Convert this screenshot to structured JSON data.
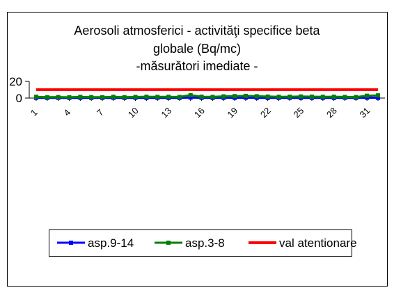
{
  "chart_data": {
    "type": "line",
    "title_lines": [
      "Aerosoli atmosferici  - activităţi specifice beta",
      "globale (Bq/mc)",
      "-măsurători imediate -"
    ],
    "xlabel": "",
    "ylabel": "",
    "x": [
      1,
      2,
      3,
      4,
      5,
      6,
      7,
      8,
      9,
      10,
      11,
      12,
      13,
      14,
      15,
      16,
      17,
      18,
      19,
      20,
      21,
      22,
      23,
      24,
      25,
      26,
      27,
      28,
      29,
      30,
      31,
      32
    ],
    "x_tick_labels": [
      "1",
      "4",
      "7",
      "10",
      "13",
      "16",
      "19",
      "22",
      "25",
      "28",
      "31"
    ],
    "x_tick_values": [
      1,
      4,
      7,
      10,
      13,
      16,
      19,
      22,
      25,
      28,
      31
    ],
    "ylim": [
      0,
      20
    ],
    "y_ticks": [
      0,
      20
    ],
    "grid": false,
    "legend_position": "bottom",
    "series": [
      {
        "name": "asp.9-14",
        "color": "#0000ff",
        "marker": "square",
        "values": [
          0.3,
          0.2,
          0.3,
          0.2,
          0.3,
          0.2,
          0.2,
          0.3,
          0.2,
          0.3,
          0.2,
          0.3,
          0.2,
          0.2,
          0.6,
          0.3,
          0.2,
          0.3,
          0.3,
          0.4,
          0.3,
          0.2,
          0.2,
          0.3,
          0.2,
          0.3,
          0.2,
          0.2,
          0.3,
          0.2,
          0.4,
          0.3
        ]
      },
      {
        "name": "asp.3-8",
        "color": "#008000",
        "marker": "square",
        "values": [
          1.5,
          1.0,
          1.2,
          0.9,
          1.4,
          1.1,
          1.0,
          1.5,
          1.0,
          1.3,
          1.6,
          1.4,
          1.5,
          1.3,
          3.5,
          1.6,
          1.4,
          2.0,
          2.3,
          2.6,
          2.2,
          1.8,
          1.5,
          1.6,
          1.9,
          1.7,
          1.5,
          1.6,
          1.3,
          1.2,
          2.8,
          3.2
        ]
      },
      {
        "name": "val atentionare",
        "color": "#ff0000",
        "marker": "none",
        "values": [
          10,
          10,
          10,
          10,
          10,
          10,
          10,
          10,
          10,
          10,
          10,
          10,
          10,
          10,
          10,
          10,
          10,
          10,
          10,
          10,
          10,
          10,
          10,
          10,
          10,
          10,
          10,
          10,
          10,
          10,
          10,
          10
        ]
      }
    ]
  }
}
